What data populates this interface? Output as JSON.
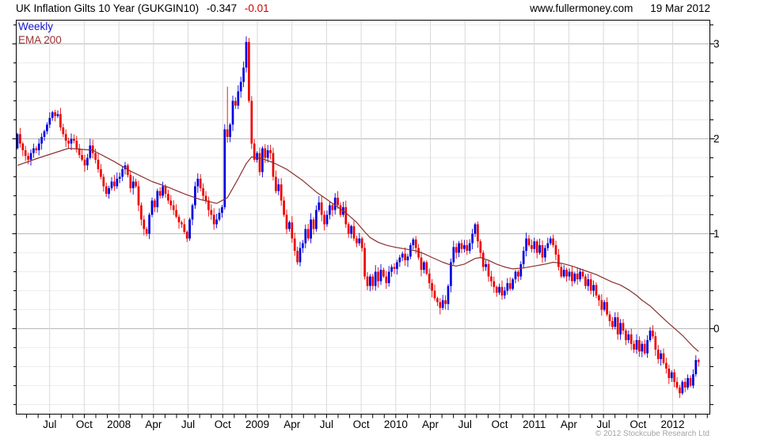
{
  "header": {
    "title": "UK Inflation Gilts 10 Year (GUKGIN10)",
    "last_value": "-0.347",
    "last_change": "-0.01",
    "website": "www.fullermoney.com",
    "date": "19 Mar 2012"
  },
  "legend": {
    "timeframe": "Weekly",
    "overlay": "EMA 200"
  },
  "footer": {
    "copyright": "© 2012 Stockcube Research Ltd"
  },
  "chart_data": {
    "type": "candlestick",
    "title": "UK Inflation Gilts 10 Year (GUKGIN10), weekly candles with EMA 200 overlay",
    "x_axis_labels": [
      "Jul",
      "Oct",
      "2008",
      "Apr",
      "Jul",
      "Oct",
      "2009",
      "Apr",
      "Jul",
      "Oct",
      "2010",
      "Apr",
      "Jul",
      "Oct",
      "2011",
      "Apr",
      "Jul",
      "Oct",
      "2012"
    ],
    "y_axis": {
      "tick_labels": [
        3,
        2,
        1,
        0
      ],
      "minor_step": 0.2,
      "range": [
        -0.9,
        3.25
      ],
      "position": "right"
    },
    "grid": true,
    "series_colors": {
      "up": "#0000e0",
      "down": "#ee0000",
      "ema": "#8b3030"
    },
    "first_open": 1.9,
    "weekly_closes": [
      2.05,
      1.95,
      1.88,
      1.82,
      1.78,
      1.85,
      1.9,
      1.88,
      1.95,
      2.02,
      2.08,
      2.15,
      2.22,
      2.28,
      2.24,
      2.26,
      2.12,
      2.05,
      1.98,
      1.95,
      2.0,
      1.98,
      1.9,
      1.83,
      1.78,
      1.72,
      1.8,
      1.93,
      1.85,
      1.78,
      1.68,
      1.6,
      1.5,
      1.42,
      1.48,
      1.55,
      1.5,
      1.58,
      1.6,
      1.68,
      1.72,
      1.62,
      1.48,
      1.55,
      1.5,
      1.3,
      1.15,
      1.05,
      1.0,
      1.2,
      1.35,
      1.28,
      1.45,
      1.4,
      1.5,
      1.42,
      1.35,
      1.3,
      1.25,
      1.18,
      1.12,
      1.1,
      1.02,
      0.95,
      1.15,
      1.3,
      1.5,
      1.58,
      1.48,
      1.4,
      1.35,
      1.25,
      1.2,
      1.1,
      1.15,
      1.22,
      1.28,
      2.1,
      2.02,
      2.15,
      2.4,
      2.35,
      2.5,
      2.6,
      2.75,
      3.02,
      2.4,
      1.95,
      1.78,
      1.85,
      1.65,
      1.9,
      1.8,
      1.88,
      1.85,
      1.6,
      1.45,
      1.52,
      1.35,
      1.2,
      1.05,
      1.12,
      0.95,
      0.82,
      0.7,
      0.85,
      0.9,
      1.05,
      0.95,
      1.15,
      1.05,
      1.25,
      1.33,
      1.2,
      1.1,
      1.2,
      1.3,
      1.25,
      1.38,
      1.3,
      1.2,
      1.28,
      1.1,
      1.0,
      1.08,
      0.95,
      0.9,
      0.95,
      0.85,
      0.55,
      0.45,
      0.55,
      0.45,
      0.6,
      0.5,
      0.62,
      0.55,
      0.48,
      0.6,
      0.65,
      0.63,
      0.7,
      0.75,
      0.79,
      0.72,
      0.76,
      0.88,
      0.94,
      0.85,
      0.75,
      0.62,
      0.7,
      0.58,
      0.48,
      0.4,
      0.32,
      0.28,
      0.22,
      0.3,
      0.26,
      0.45,
      0.7,
      0.86,
      0.8,
      0.9,
      0.84,
      0.88,
      0.82,
      0.9,
      1.0,
      1.1,
      0.92,
      0.8,
      0.65,
      0.68,
      0.55,
      0.5,
      0.44,
      0.38,
      0.44,
      0.35,
      0.4,
      0.48,
      0.42,
      0.52,
      0.6,
      0.55,
      0.68,
      0.82,
      0.95,
      0.88,
      0.84,
      0.92,
      0.8,
      0.88,
      0.75,
      0.85,
      0.9,
      0.95,
      0.88,
      0.78,
      0.65,
      0.55,
      0.62,
      0.55,
      0.6,
      0.5,
      0.58,
      0.52,
      0.6,
      0.55,
      0.45,
      0.52,
      0.4,
      0.46,
      0.35,
      0.3,
      0.2,
      0.28,
      0.15,
      0.08,
      0.02,
      0.12,
      -0.06,
      0.06,
      -0.02,
      -0.12,
      -0.06,
      -0.16,
      -0.22,
      -0.12,
      -0.24,
      -0.16,
      -0.26,
      -0.12,
      -0.02,
      -0.08,
      -0.22,
      -0.32,
      -0.26,
      -0.36,
      -0.42,
      -0.52,
      -0.46,
      -0.56,
      -0.62,
      -0.68,
      -0.56,
      -0.62,
      -0.52,
      -0.6,
      -0.48,
      -0.33,
      -0.35
    ],
    "wick_overrides": {
      "78": {
        "high": 2.55
      },
      "85": {
        "high": 3.08
      },
      "157": {
        "low": 0.15
      },
      "246": {
        "low": -0.73
      },
      "252": {
        "high": -0.28
      }
    },
    "ema_200_anchors": [
      [
        0,
        1.72
      ],
      [
        8,
        1.8
      ],
      [
        19,
        1.9
      ],
      [
        28,
        1.88
      ],
      [
        36,
        1.76
      ],
      [
        42,
        1.66
      ],
      [
        50,
        1.55
      ],
      [
        56,
        1.49
      ],
      [
        62,
        1.42
      ],
      [
        68,
        1.36
      ],
      [
        74,
        1.32
      ],
      [
        78,
        1.38
      ],
      [
        82,
        1.58
      ],
      [
        85,
        1.74
      ],
      [
        87,
        1.81
      ],
      [
        91,
        1.79
      ],
      [
        95,
        1.75
      ],
      [
        100,
        1.68
      ],
      [
        106,
        1.56
      ],
      [
        111,
        1.44
      ],
      [
        115,
        1.36
      ],
      [
        119,
        1.28
      ],
      [
        122,
        1.22
      ],
      [
        126,
        1.12
      ],
      [
        129,
        1.02
      ],
      [
        131,
        0.96
      ],
      [
        134,
        0.91
      ],
      [
        137,
        0.88
      ],
      [
        140,
        0.86
      ],
      [
        144,
        0.84
      ],
      [
        148,
        0.82
      ],
      [
        151,
        0.79
      ],
      [
        154,
        0.75
      ],
      [
        158,
        0.7
      ],
      [
        161,
        0.67
      ],
      [
        163,
        0.66
      ],
      [
        166,
        0.68
      ],
      [
        168,
        0.71
      ],
      [
        170,
        0.74
      ],
      [
        172,
        0.75
      ],
      [
        175,
        0.72
      ],
      [
        178,
        0.68
      ],
      [
        181,
        0.65
      ],
      [
        184,
        0.63
      ],
      [
        188,
        0.64
      ],
      [
        192,
        0.66
      ],
      [
        196,
        0.68
      ],
      [
        199,
        0.7
      ],
      [
        202,
        0.69
      ],
      [
        206,
        0.66
      ],
      [
        209,
        0.63
      ],
      [
        212,
        0.6
      ],
      [
        215,
        0.57
      ],
      [
        218,
        0.53
      ],
      [
        221,
        0.49
      ],
      [
        224,
        0.46
      ],
      [
        227,
        0.41
      ],
      [
        230,
        0.35
      ],
      [
        232,
        0.3
      ],
      [
        235,
        0.24
      ],
      [
        238,
        0.16
      ],
      [
        241,
        0.08
      ],
      [
        243,
        0.03
      ],
      [
        245,
        -0.02
      ],
      [
        247,
        -0.07
      ],
      [
        249,
        -0.13
      ],
      [
        251,
        -0.19
      ],
      [
        253,
        -0.24
      ]
    ]
  }
}
